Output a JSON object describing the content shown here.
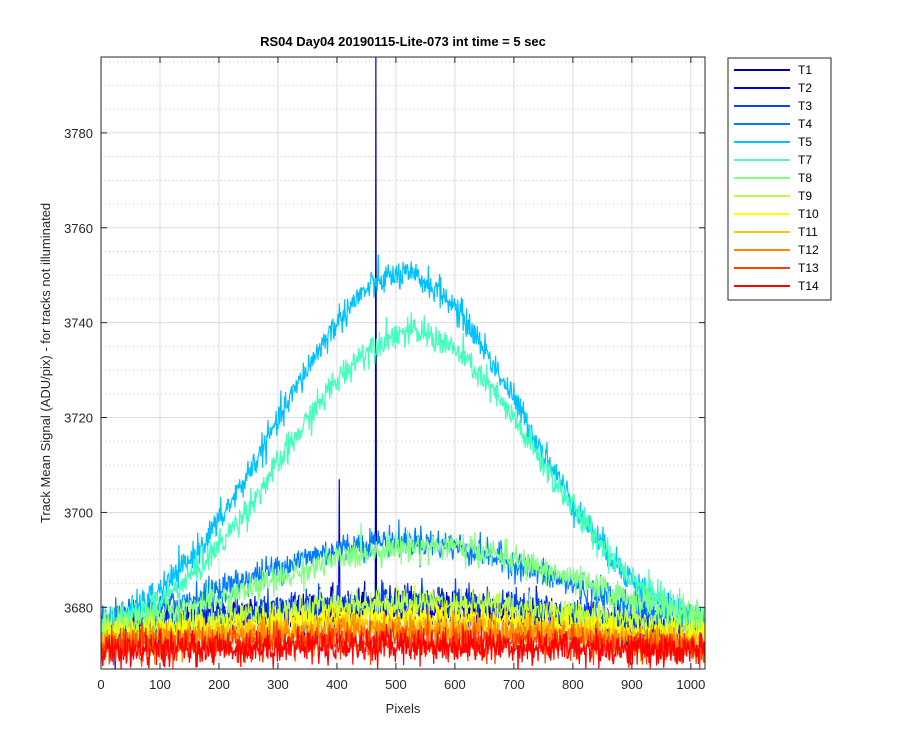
{
  "chart_data": {
    "type": "line",
    "title": "RS04 Day04 20190115-Lite-073 int time = 5 sec",
    "xlabel": "Pixels",
    "ylabel": "Track Mean Signal (ADU/pix) - for tracks not illuminated",
    "xlim": [
      0,
      1024
    ],
    "ylim": [
      3667,
      3796
    ],
    "xticks": [
      0,
      100,
      200,
      300,
      400,
      500,
      600,
      700,
      800,
      900,
      1000
    ],
    "yticks": [
      3680,
      3700,
      3720,
      3740,
      3760,
      3780
    ],
    "grid": true,
    "minor_grid": true,
    "legend_position": "outside-top-right",
    "series": [
      {
        "name": "T1",
        "color": "#0000ad",
        "base": 3673,
        "amplitude": 7,
        "noise": 2.0,
        "center": 470,
        "sigma": 330,
        "spikes": [
          [
            466,
            3796
          ],
          [
            465,
            3674
          ]
        ]
      },
      {
        "name": "T2",
        "color": "#0000d9",
        "base": 3672,
        "amplitude": 8,
        "noise": 2.0,
        "center": 500,
        "sigma": 330,
        "spikes": [
          [
            404,
            3707
          ],
          [
            405,
            3679
          ]
        ]
      },
      {
        "name": "T3",
        "color": "#0044ff",
        "base": 3673,
        "amplitude": 8,
        "noise": 1.8,
        "center": 520,
        "sigma": 320,
        "spikes": []
      },
      {
        "name": "T4",
        "color": "#007bff",
        "base": 3675,
        "amplitude": 19,
        "noise": 1.6,
        "center": 510,
        "sigma": 250,
        "spikes": []
      },
      {
        "name": "T5",
        "color": "#00c1ff",
        "base": 3672,
        "amplitude": 78,
        "noise": 1.6,
        "center": 510,
        "sigma": 210,
        "spikes": []
      },
      {
        "name": "T7",
        "color": "#44ffbb",
        "base": 3672,
        "amplitude": 66,
        "noise": 1.6,
        "center": 525,
        "sigma": 215,
        "spikes": []
      },
      {
        "name": "T8",
        "color": "#80ff80",
        "base": 3675,
        "amplitude": 18,
        "noise": 1.5,
        "center": 550,
        "sigma": 250,
        "spikes": []
      },
      {
        "name": "T9",
        "color": "#bbff44",
        "base": 3673,
        "amplitude": 8,
        "noise": 1.6,
        "center": 540,
        "sigma": 310,
        "spikes": []
      },
      {
        "name": "T10",
        "color": "#ffff00",
        "base": 3672,
        "amplitude": 6,
        "noise": 1.6,
        "center": 520,
        "sigma": 320,
        "spikes": []
      },
      {
        "name": "T11",
        "color": "#ffc400",
        "base": 3671,
        "amplitude": 5,
        "noise": 1.6,
        "center": 520,
        "sigma": 330,
        "spikes": []
      },
      {
        "name": "T12",
        "color": "#ff8800",
        "base": 3671,
        "amplitude": 4,
        "noise": 1.6,
        "center": 520,
        "sigma": 340,
        "spikes": []
      },
      {
        "name": "T13",
        "color": "#ff4000",
        "base": 3670,
        "amplitude": 3,
        "noise": 1.7,
        "center": 500,
        "sigma": 360,
        "spikes": []
      },
      {
        "name": "T14",
        "color": "#ff0000",
        "base": 3670,
        "amplitude": 2,
        "noise": 1.8,
        "center": 500,
        "sigma": 380,
        "spikes": []
      }
    ]
  }
}
